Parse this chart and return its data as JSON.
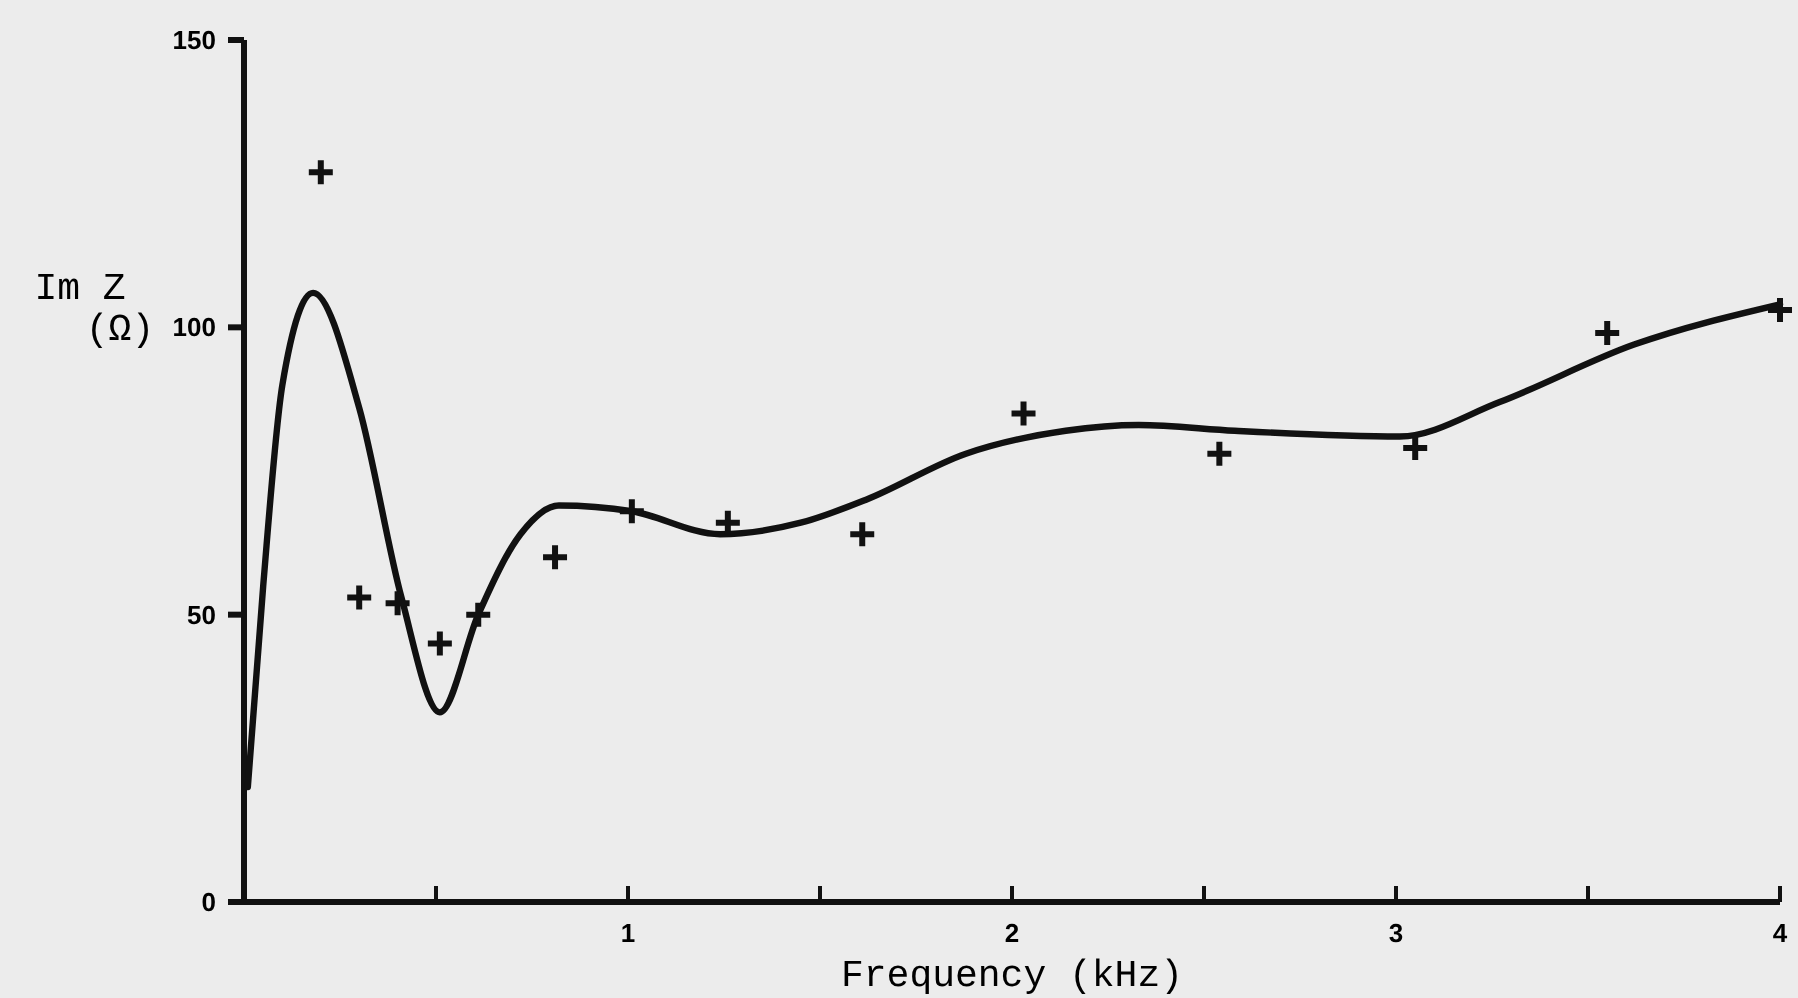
{
  "chart_data": {
    "type": "line",
    "xlabel": "Frequency (kHz)",
    "ylabel": "Im Z (Ω)",
    "xlim": [
      0,
      4
    ],
    "xticks": [
      {
        "value": 0.5,
        "label": null
      },
      1,
      {
        "value": 1.5,
        "label": null
      },
      2,
      {
        "value": 2.5,
        "label": null
      },
      3,
      {
        "value": 3.5,
        "label": null
      },
      4
    ],
    "ylim": [
      0,
      150
    ],
    "yticks": [
      0,
      50,
      100,
      150
    ],
    "grid": false,
    "series": [
      {
        "color": "#111111",
        "marker": "none",
        "line_style": "solid",
        "x": [
          0.01,
          0.05,
          0.1,
          0.18,
          0.3,
          0.41,
          0.51,
          0.61,
          0.72,
          0.82,
          1.01,
          1.24,
          1.45,
          1.62,
          1.88,
          2.14,
          2.33,
          2.58,
          3.01,
          3.27,
          3.62,
          4.0
        ],
        "values": [
          20,
          55,
          90,
          106,
          86,
          53,
          33,
          50,
          64,
          69,
          68,
          64,
          66,
          70,
          78,
          82,
          83,
          82,
          81,
          87,
          97,
          104
        ]
      },
      {
        "type": "scatter",
        "color": "#111111",
        "marker": "cross",
        "x": [
          0.2,
          0.3,
          0.4,
          0.51,
          0.61,
          0.81,
          1.01,
          1.26,
          1.61,
          2.03,
          2.54,
          3.05,
          3.55,
          4.0
        ],
        "values": [
          127,
          53,
          52,
          45,
          50,
          60,
          68,
          66,
          64,
          85,
          78,
          79,
          99,
          103
        ]
      }
    ]
  }
}
